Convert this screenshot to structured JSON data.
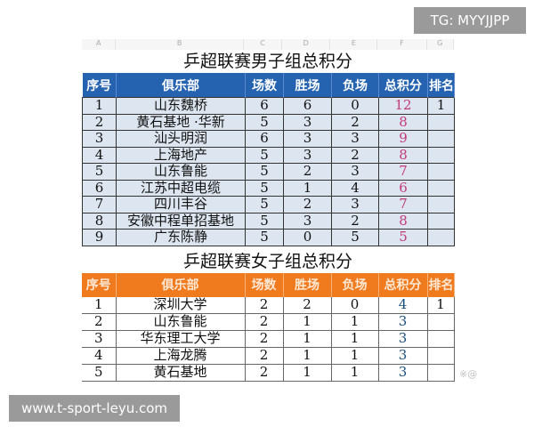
{
  "watermark_top": "TG: MYYJJPP",
  "watermark_bottom": "www.t-sport-leyu.com",
  "faint_watermark": "※@",
  "columns": [
    "A",
    "B",
    "C",
    "D",
    "E",
    "F",
    "G"
  ],
  "headers": [
    "序号",
    "俱乐部",
    "场数",
    "胜场",
    "负场",
    "总积分",
    "排名"
  ],
  "men": {
    "title": "乒超联赛男子组总积分",
    "rows": [
      [
        "1",
        "山东魏桥",
        "6",
        "6",
        "0",
        "12",
        "1"
      ],
      [
        "2",
        "黄石基地 ·华新",
        "5",
        "3",
        "2",
        "8",
        ""
      ],
      [
        "3",
        "汕头明润",
        "6",
        "3",
        "3",
        "9",
        ""
      ],
      [
        "4",
        "上海地产",
        "5",
        "3",
        "2",
        "8",
        ""
      ],
      [
        "5",
        "山东鲁能",
        "5",
        "2",
        "3",
        "7",
        ""
      ],
      [
        "6",
        "江苏中超电缆",
        "5",
        "1",
        "4",
        "6",
        ""
      ],
      [
        "7",
        "四川丰谷",
        "5",
        "2",
        "3",
        "7",
        ""
      ],
      [
        "8",
        "安徽中程单招基地",
        "5",
        "3",
        "2",
        "8",
        ""
      ],
      [
        "9",
        "广东陈静",
        "5",
        "0",
        "5",
        "5",
        ""
      ]
    ]
  },
  "women": {
    "title": "乒超联赛女子组总积分",
    "rows": [
      [
        "1",
        "深圳大学",
        "2",
        "2",
        "0",
        "4",
        "1"
      ],
      [
        "2",
        "山东鲁能",
        "2",
        "1",
        "1",
        "3",
        ""
      ],
      [
        "3",
        "华东理工大学",
        "2",
        "1",
        "1",
        "3",
        ""
      ],
      [
        "4",
        "上海龙腾",
        "2",
        "1",
        "1",
        "3",
        ""
      ],
      [
        "5",
        "黄石基地",
        "2",
        "1",
        "1",
        "3",
        ""
      ]
    ]
  },
  "colors": {
    "men_header": "#2563b0",
    "women_header": "#f07a1e",
    "men_points": "#c03a7a"
  }
}
